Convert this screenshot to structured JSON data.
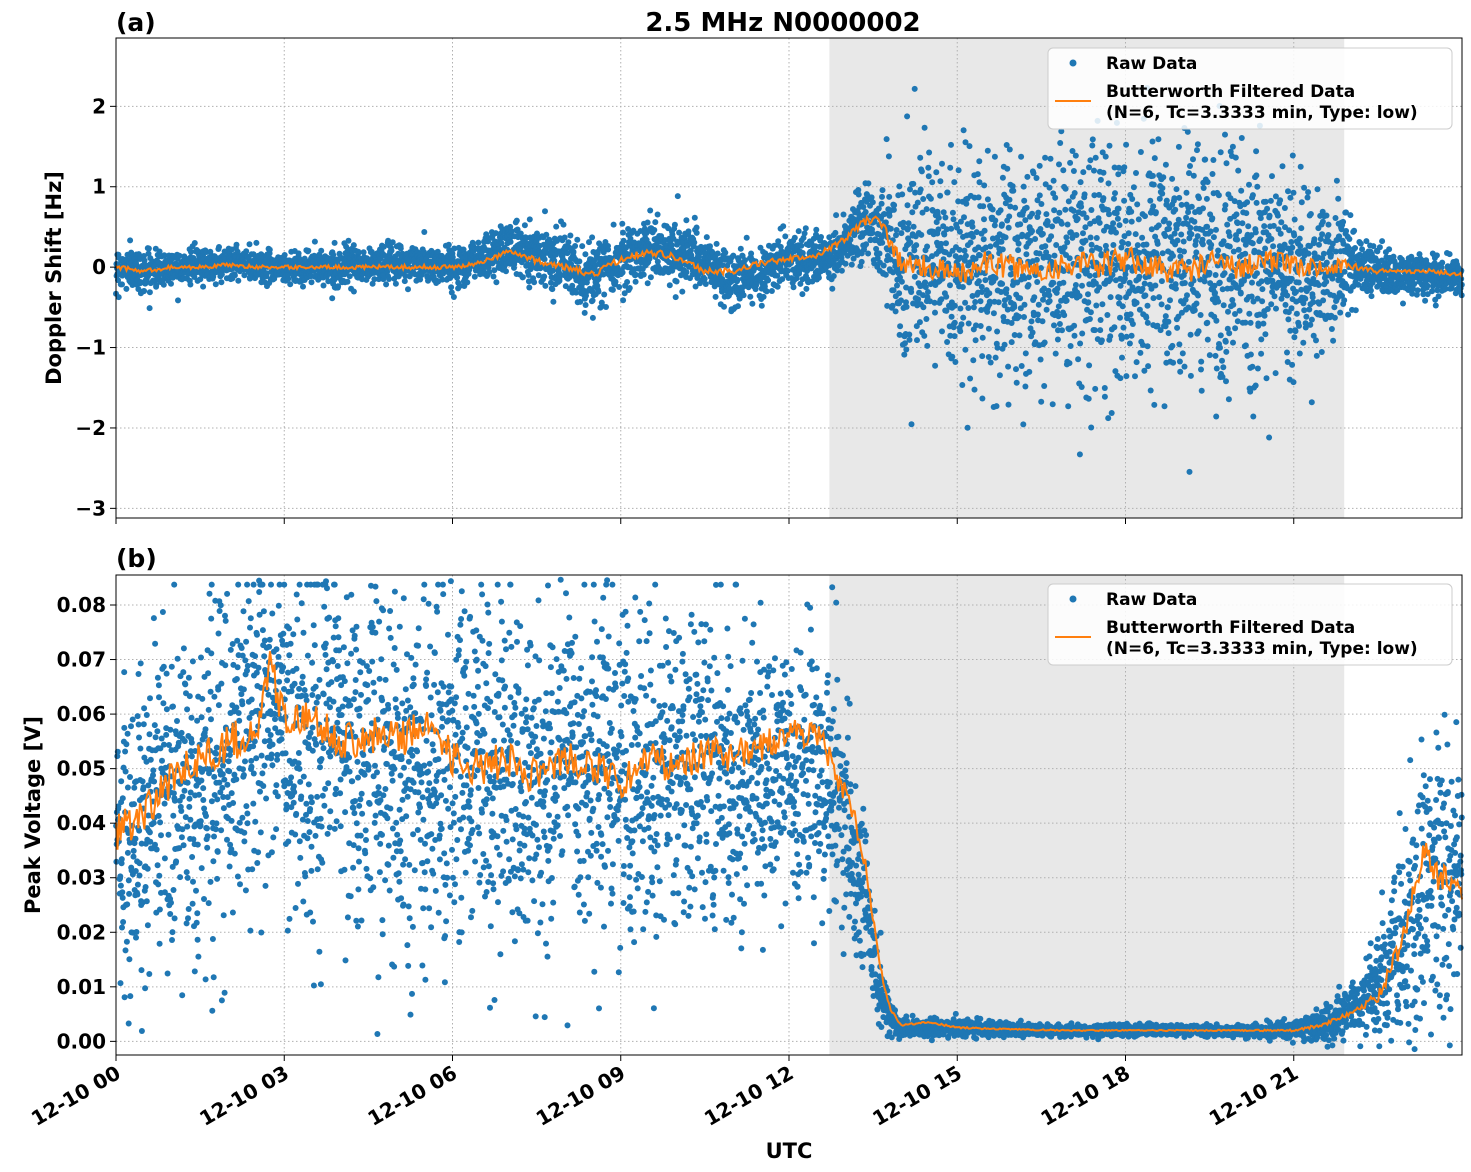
{
  "chart_data": [
    {
      "type": "scatter",
      "panel_label": "(a)",
      "title": "2.5 MHz N0000002",
      "ylabel": "Doppler Shift [Hz]",
      "xlabel": "",
      "ylim": [
        -3.12,
        2.85
      ],
      "yticks": [
        2,
        1,
        0,
        -1,
        -2,
        -3
      ],
      "ytick_labels": [
        "2",
        "1",
        "0",
        "−1",
        "−2",
        "−3"
      ],
      "grid": true,
      "legend_position": "top-right",
      "shaded_interval_hours": [
        12.72,
        21.9
      ],
      "series": [
        {
          "name": "Raw Data",
          "kind": "scatter",
          "color": "#1f77b4",
          "profile_hours": [
            0,
            0.5,
            1,
            2,
            3,
            4,
            5,
            6,
            7,
            8,
            8.3,
            9,
            9.6,
            10.4,
            11,
            12,
            12.7,
            13,
            13.4,
            13.7,
            14,
            15,
            16,
            17,
            18,
            19,
            20,
            21,
            21.8,
            22.2,
            22.8,
            23.5,
            24
          ],
          "profile_center": [
            0,
            -0.05,
            0,
            0.05,
            0,
            0,
            0.05,
            0,
            0.25,
            0.1,
            -0.2,
            0.1,
            0.25,
            0.1,
            -0.2,
            0.1,
            0.1,
            0.3,
            0.6,
            0.4,
            0,
            0,
            0,
            0,
            0,
            0,
            0,
            0,
            0,
            -0.05,
            -0.1,
            -0.1,
            -0.15
          ],
          "profile_spread": [
            0.12,
            0.12,
            0.1,
            0.1,
            0.1,
            0.1,
            0.12,
            0.12,
            0.15,
            0.18,
            0.2,
            0.18,
            0.2,
            0.18,
            0.18,
            0.15,
            0.15,
            0.18,
            0.25,
            0.35,
            0.6,
            0.65,
            0.7,
            0.75,
            0.75,
            0.75,
            0.7,
            0.6,
            0.4,
            0.2,
            0.12,
            0.12,
            0.12
          ]
        },
        {
          "name": "Butterworth Filtered Data\n(N=6, Tc=3.3333 min, Type: low)",
          "kind": "line",
          "color": "#ff7f0e",
          "x_hours": [
            0,
            0.5,
            1,
            1.5,
            2,
            2.5,
            3,
            3.5,
            4,
            4.5,
            5,
            5.5,
            6,
            6.5,
            7,
            7.5,
            8,
            8.5,
            9,
            9.5,
            10,
            10.5,
            11,
            11.5,
            12,
            12.5,
            13,
            13.3,
            13.6,
            13.8,
            14,
            14.5,
            15,
            15.5,
            16,
            16.5,
            17,
            17.5,
            18,
            18.5,
            19,
            19.5,
            20,
            20.5,
            21,
            21.5,
            22,
            22.5,
            23,
            23.5,
            24
          ],
          "y": [
            0,
            -0.05,
            0,
            0,
            0.03,
            0,
            0,
            0,
            0,
            0,
            0,
            0,
            0,
            0.05,
            0.2,
            0.08,
            0,
            -0.1,
            0.1,
            0.2,
            0.12,
            -0.05,
            -0.05,
            0.05,
            0.1,
            0.15,
            0.35,
            0.55,
            0.65,
            0.3,
            0.05,
            0,
            -0.1,
            0.05,
            0,
            -0.05,
            0.05,
            0,
            0.1,
            0,
            -0.05,
            0.05,
            0,
            0.1,
            0,
            0,
            0.02,
            -0.05,
            -0.05,
            -0.05,
            -0.1
          ]
        }
      ]
    },
    {
      "type": "scatter",
      "panel_label": "(b)",
      "title": "",
      "ylabel": "Peak Voltage [V]",
      "xlabel": "UTC",
      "ylim": [
        -0.0025,
        0.0855
      ],
      "yticks": [
        0.08,
        0.07,
        0.06,
        0.05,
        0.04,
        0.03,
        0.02,
        0.01,
        0.0
      ],
      "ytick_labels": [
        "0.08",
        "0.07",
        "0.06",
        "0.05",
        "0.04",
        "0.03",
        "0.02",
        "0.01",
        "0.00"
      ],
      "grid": true,
      "legend_position": "top-right",
      "shaded_interval_hours": [
        12.72,
        21.9
      ],
      "xlim_hours": [
        0,
        24
      ],
      "xticks_hours": [
        0,
        3,
        6,
        9,
        12,
        15,
        18,
        21
      ],
      "xtick_labels": [
        "12-10 00",
        "12-10 03",
        "12-10 06",
        "12-10 09",
        "12-10 12",
        "12-10 15",
        "12-10 18",
        "12-10 21"
      ],
      "series": [
        {
          "name": "Raw Data",
          "kind": "scatter",
          "color": "#1f77b4",
          "profile_hours": [
            0,
            0.5,
            1,
            2,
            2.7,
            3,
            4,
            5,
            6,
            7,
            8,
            9,
            10,
            11,
            12,
            12.7,
            13,
            13.3,
            13.6,
            13.8,
            14,
            15,
            16,
            17,
            18,
            19,
            20,
            21,
            21.5,
            22,
            22.5,
            23,
            23.5,
            24
          ],
          "profile_center": [
            0.035,
            0.04,
            0.045,
            0.052,
            0.062,
            0.055,
            0.055,
            0.052,
            0.05,
            0.05,
            0.05,
            0.05,
            0.05,
            0.05,
            0.05,
            0.048,
            0.042,
            0.03,
            0.012,
            0.004,
            0.0025,
            0.0025,
            0.0022,
            0.002,
            0.002,
            0.002,
            0.002,
            0.0022,
            0.003,
            0.006,
            0.01,
            0.02,
            0.03,
            0.03
          ],
          "profile_spread": [
            0.015,
            0.015,
            0.016,
            0.016,
            0.015,
            0.016,
            0.016,
            0.016,
            0.016,
            0.015,
            0.015,
            0.015,
            0.015,
            0.014,
            0.012,
            0.012,
            0.01,
            0.008,
            0.004,
            0.0015,
            0.0008,
            0.0008,
            0.0006,
            0.0005,
            0.0005,
            0.0005,
            0.0005,
            0.0008,
            0.0015,
            0.002,
            0.005,
            0.01,
            0.013,
            0.012
          ]
        },
        {
          "name": "Butterworth Filtered Data\n(N=6, Tc=3.3333 min, Type: low)",
          "kind": "line",
          "color": "#ff7f0e",
          "x_hours": [
            0,
            0.5,
            1,
            1.5,
            2,
            2.5,
            2.75,
            3,
            3.5,
            4,
            4.5,
            5,
            5.5,
            6,
            6.5,
            7,
            7.5,
            8,
            8.5,
            9,
            9.5,
            10,
            10.5,
            11,
            11.5,
            12,
            12.5,
            12.8,
            13.0,
            13.2,
            13.4,
            13.6,
            13.8,
            14,
            14.5,
            15,
            16,
            17,
            18,
            19,
            20,
            21,
            21.5,
            22,
            22.5,
            22.8,
            23,
            23.3,
            23.6,
            24
          ],
          "y": [
            0.038,
            0.042,
            0.048,
            0.052,
            0.055,
            0.056,
            0.07,
            0.058,
            0.06,
            0.055,
            0.056,
            0.055,
            0.058,
            0.052,
            0.05,
            0.052,
            0.048,
            0.052,
            0.05,
            0.048,
            0.052,
            0.05,
            0.053,
            0.052,
            0.054,
            0.056,
            0.057,
            0.05,
            0.045,
            0.04,
            0.03,
            0.015,
            0.006,
            0.003,
            0.0035,
            0.0025,
            0.0022,
            0.002,
            0.002,
            0.002,
            0.002,
            0.002,
            0.003,
            0.005,
            0.008,
            0.015,
            0.02,
            0.035,
            0.03,
            0.028
          ]
        }
      ]
    }
  ]
}
